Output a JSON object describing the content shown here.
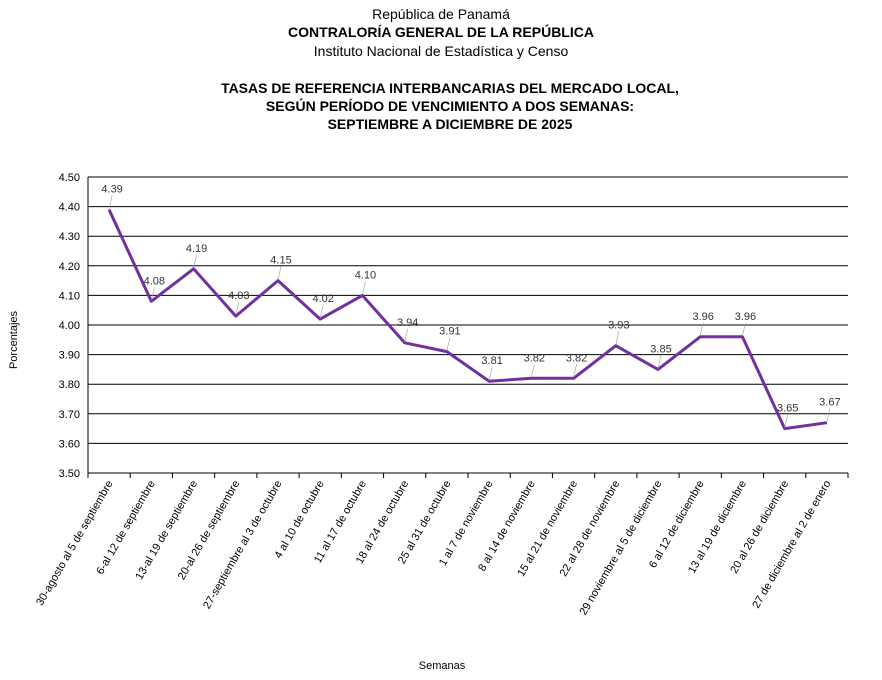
{
  "header": {
    "line1": "República de Panamá",
    "line2": "CONTRALORÍA GENERAL DE LA REPÚBLICA",
    "line3": "Instituto Nacional de Estadística y Censo"
  },
  "chart_data": {
    "type": "line",
    "title": [
      "TASAS DE REFERENCIA INTERBANCARIAS DEL MERCADO LOCAL,",
      "SEGÚN PERÍODO DE VENCIMIENTO A DOS SEMANAS:",
      "SEPTIEMBRE A DICIEMBRE DE 2025"
    ],
    "xlabel": "Semanas",
    "ylabel": "Porcentajes",
    "ylim": [
      3.5,
      4.5
    ],
    "yticks": [
      "3.50",
      "3.60",
      "3.70",
      "3.80",
      "3.90",
      "4.00",
      "4.10",
      "4.20",
      "4.30",
      "4.40",
      "4.50"
    ],
    "grid": true,
    "line_color": "#7030a0",
    "categories": [
      "30-agosto al 5 de septiembre",
      "6-al 12 de septiembre",
      "13-al 19 de septiembre",
      "20-al 26 de septiembre",
      "27-septiembre al 3 de octubre",
      "4 al 10 de octubre",
      "11 al 17 de octubre",
      "18 al 24 de octubre",
      "25 al 31 de octubre",
      "1 al 7 de noviembre",
      "8 al 14 de noviembre",
      "15 al 21 de noviembre",
      "22 al 28 de noviembre",
      "29 noviembre al 5 de diciembre",
      "6 al 12 de diciembre",
      "13 al 19 de diciembre",
      "20 al 26 de diciembre",
      "27 de diciembre al 2 de enero"
    ],
    "values": [
      4.39,
      4.08,
      4.19,
      4.03,
      4.15,
      4.02,
      4.1,
      3.94,
      3.91,
      3.81,
      3.82,
      3.82,
      3.93,
      3.85,
      3.96,
      3.96,
      3.65,
      3.67
    ],
    "value_labels": [
      "4.39",
      "4.08",
      "4.19",
      "4.03",
      "4.15",
      "4.02",
      "4.10",
      "3.94",
      "3.91",
      "3.81",
      "3.82",
      "3.82",
      "3.93",
      "3.85",
      "3.96",
      "3.96",
      "3.65",
      "3.67"
    ]
  }
}
